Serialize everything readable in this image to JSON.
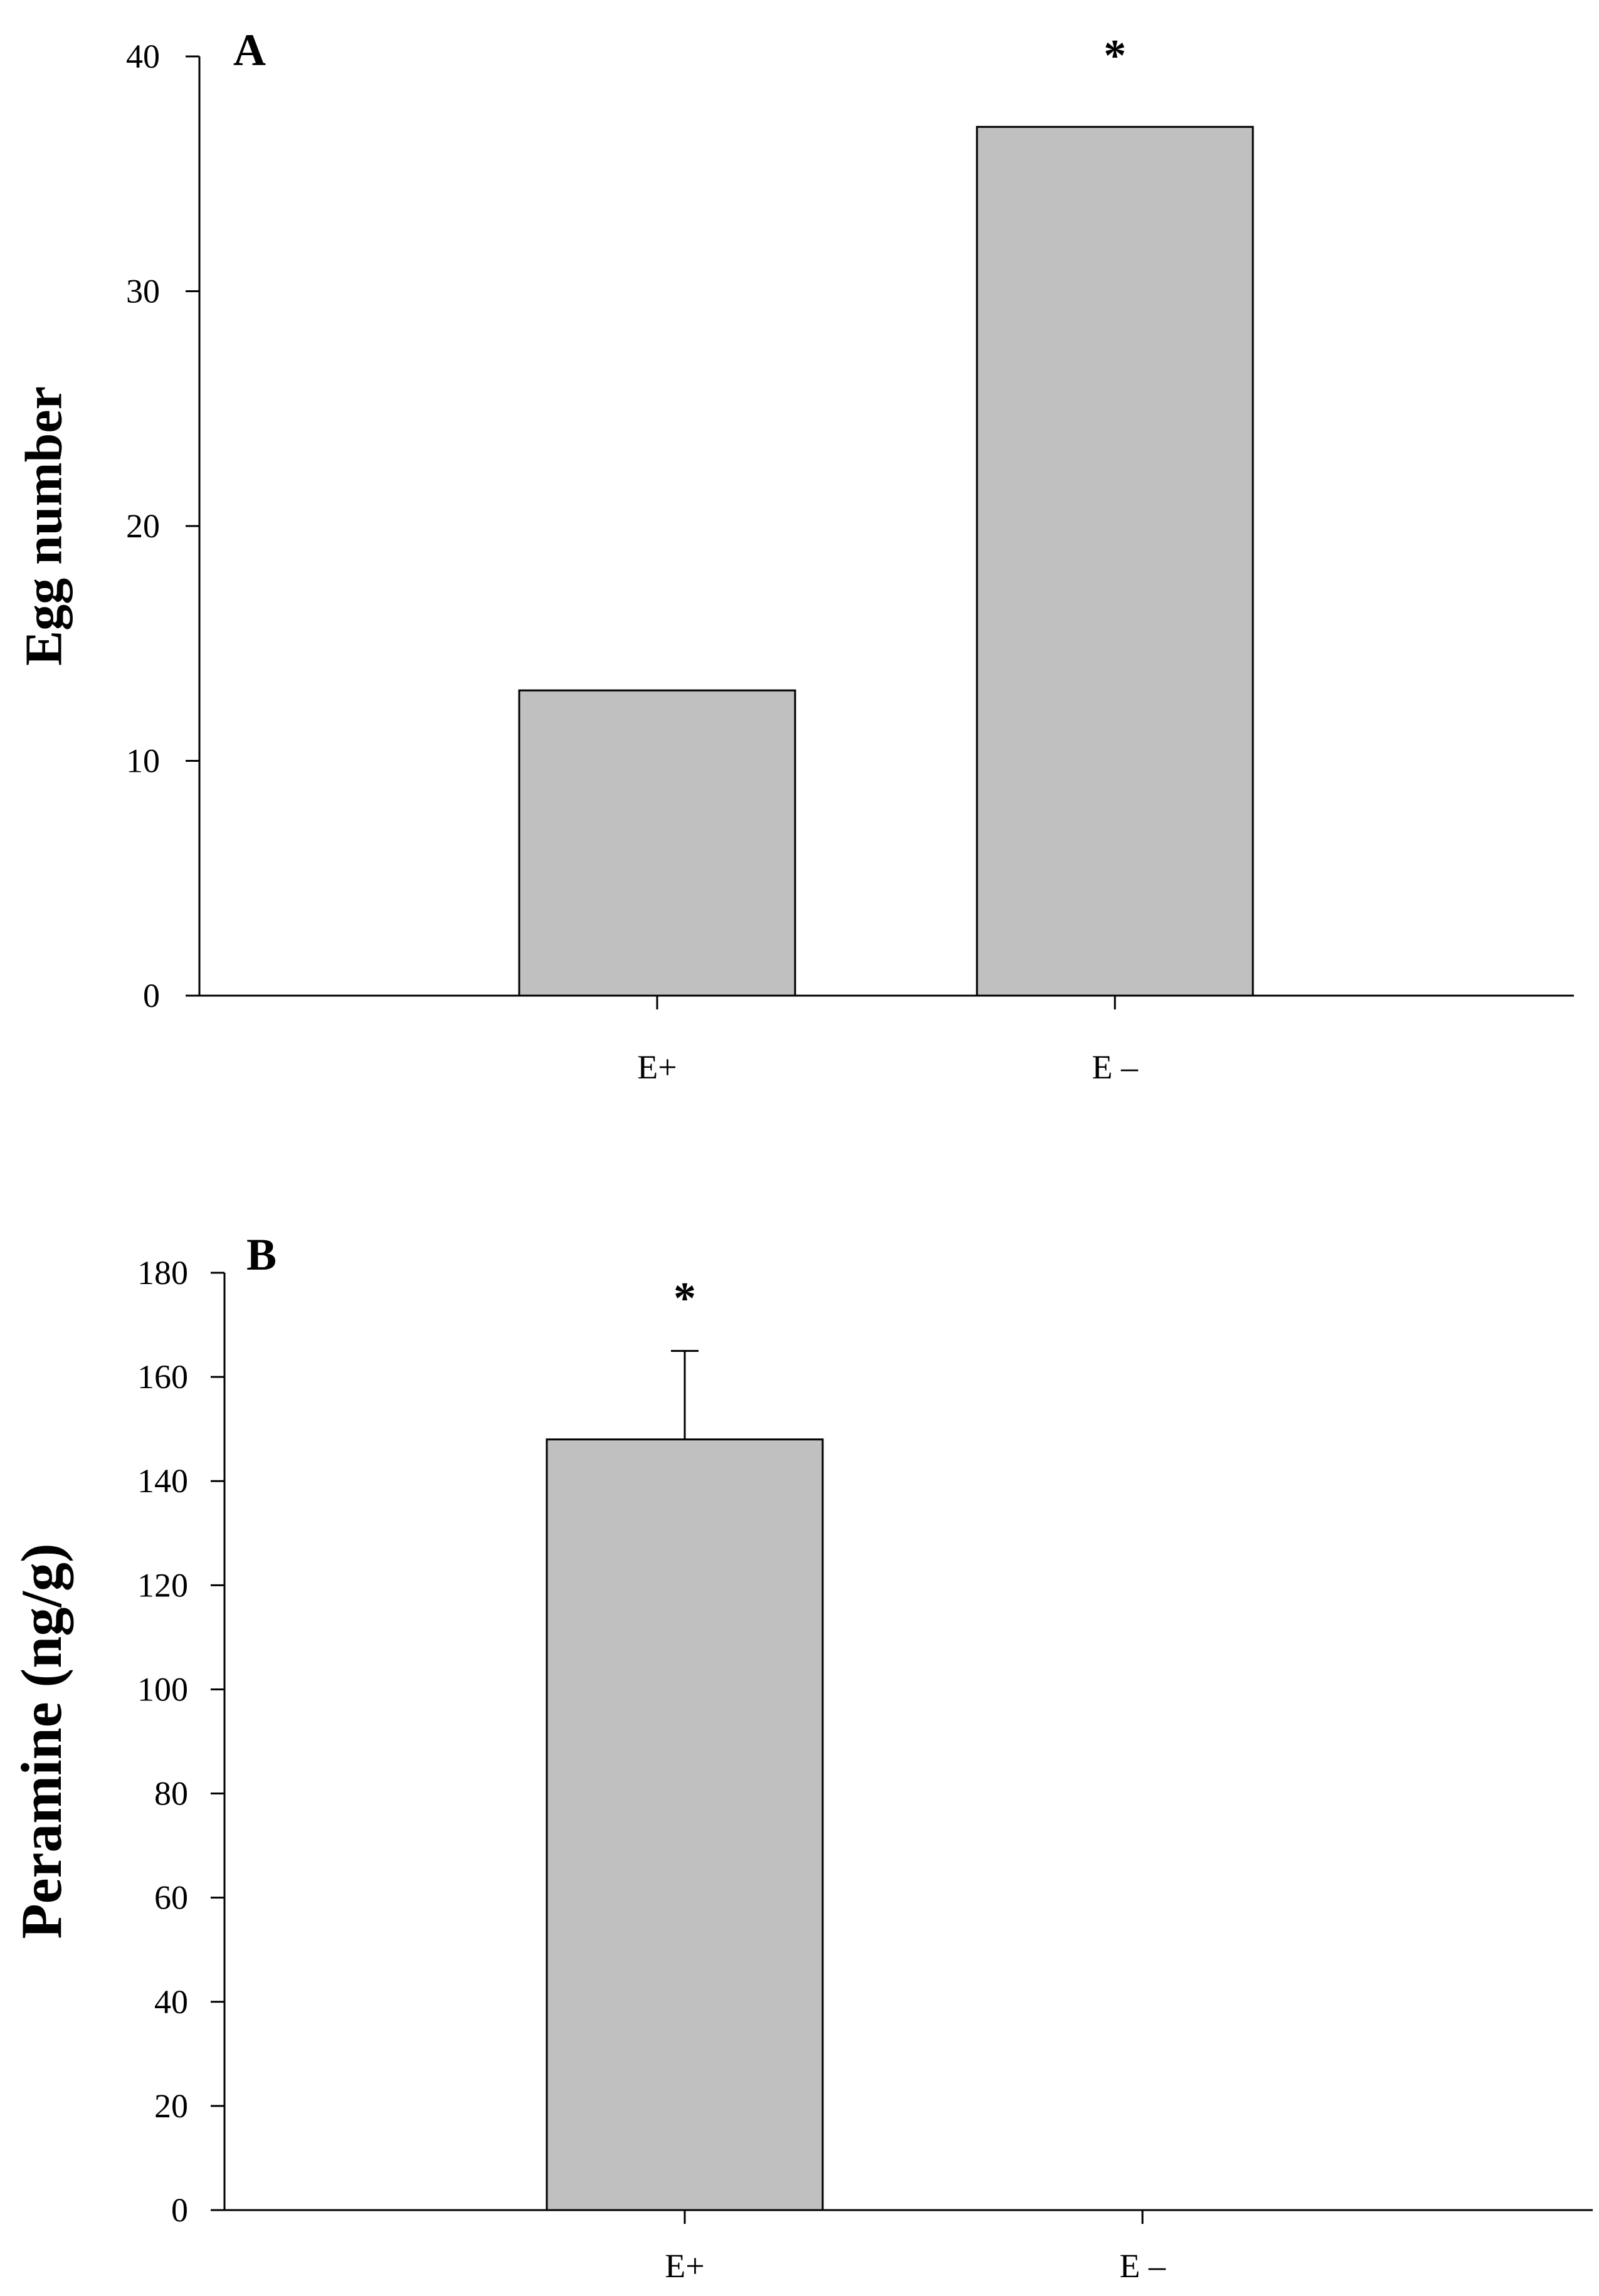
{
  "chart_data": [
    {
      "panel_label": "A",
      "type": "bar",
      "categories": [
        "E+",
        "E –"
      ],
      "values": [
        13,
        37
      ],
      "errors": [
        null,
        null
      ],
      "significance": [
        "",
        "*"
      ],
      "title": "",
      "xlabel": "",
      "ylabel": "Egg number",
      "ylim": [
        0,
        40
      ],
      "yticks": [
        0,
        10,
        20,
        30,
        40
      ],
      "bar_color": "#c0c0c0",
      "grid": false,
      "legend": "none"
    },
    {
      "panel_label": "B",
      "type": "bar",
      "categories": [
        "E+",
        "E –"
      ],
      "values": [
        148,
        0
      ],
      "errors": [
        17,
        null
      ],
      "significance": [
        "*",
        ""
      ],
      "title": "",
      "xlabel": "",
      "ylabel": "Peramine (ng/g)",
      "ylim": [
        0,
        180
      ],
      "yticks": [
        0,
        20,
        40,
        60,
        80,
        100,
        120,
        140,
        160,
        180
      ],
      "bar_color": "#c0c0c0",
      "grid": false,
      "legend": "none"
    }
  ]
}
